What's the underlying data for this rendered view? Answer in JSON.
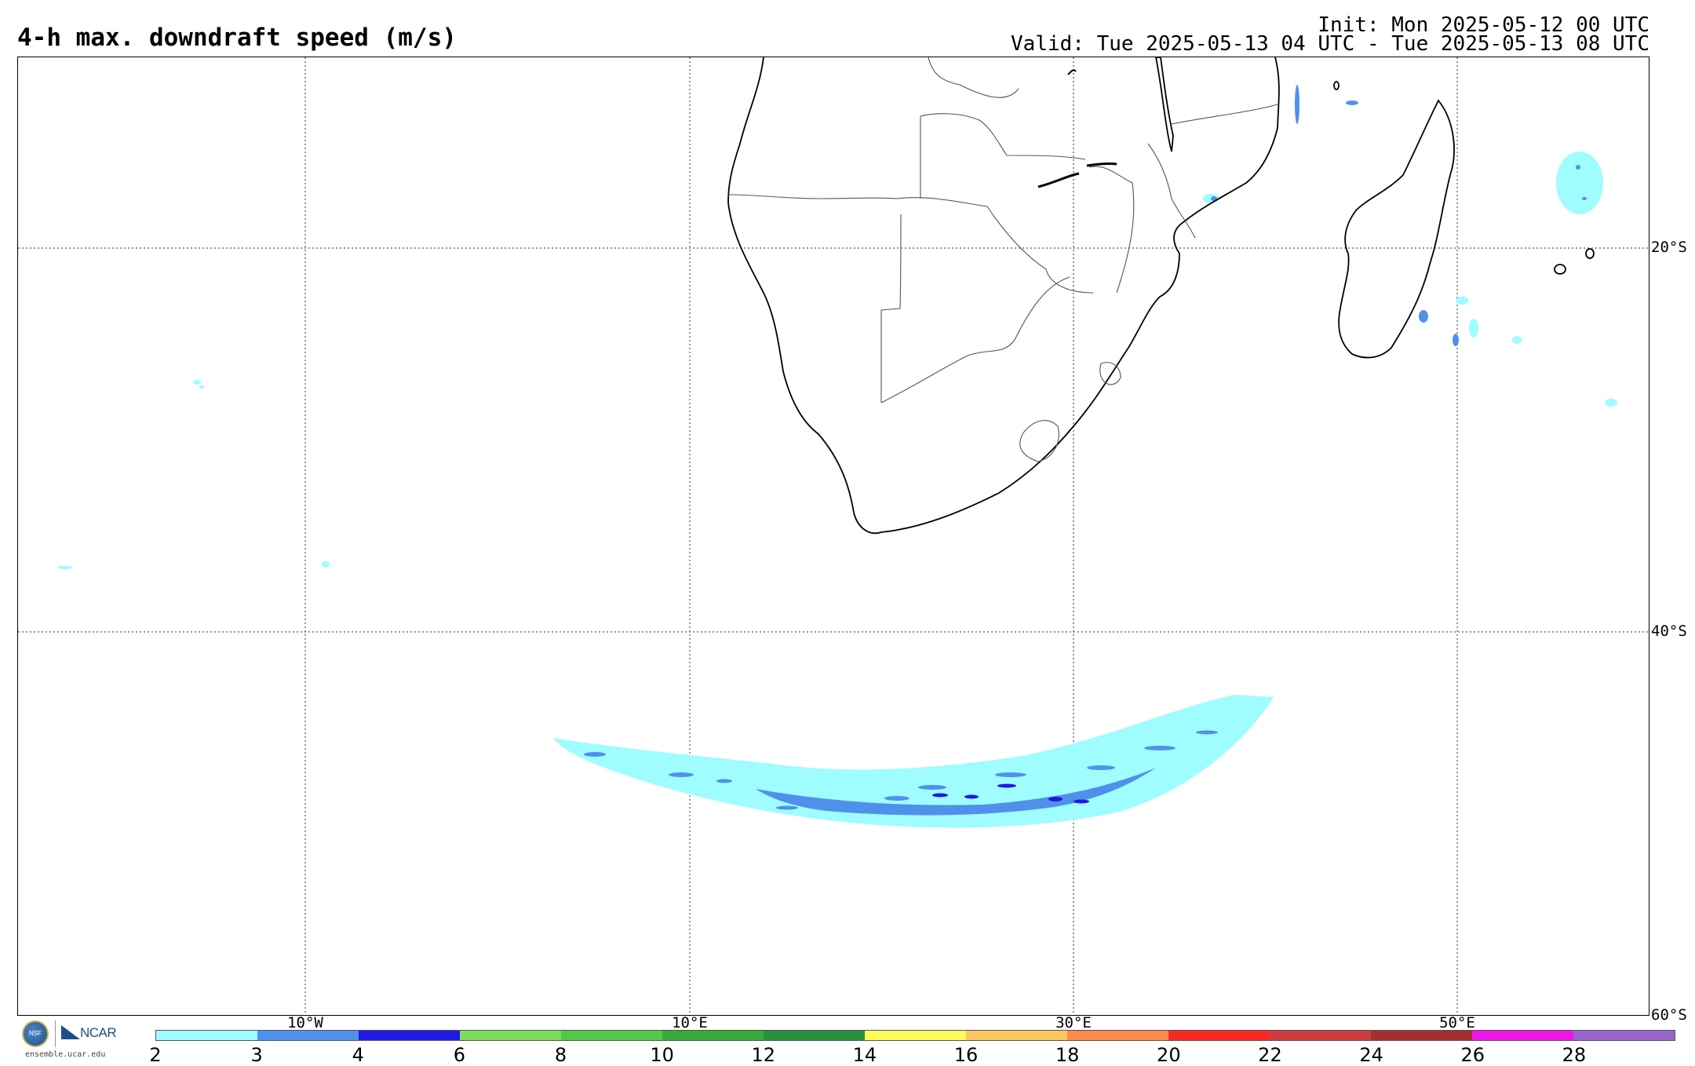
{
  "title": "4-h max. downdraft speed (m/s)",
  "init_text": "Init: Mon 2025-05-12 00 UTC",
  "valid_text": "Valid: Tue 2025-05-13 04 UTC - Tue 2025-05-13 08 UTC",
  "lat_labels": [
    "20°S",
    "40°S",
    "60°S"
  ],
  "lon_labels": [
    "10°W",
    "10°E",
    "30°E",
    "50°E"
  ],
  "logo": {
    "nsf_text": "NSF",
    "ncar_text": "NCAR",
    "url_text": "ensemble.ucar.edu"
  },
  "colorbar": {
    "colors": [
      "#9ffcff",
      "#4f91ea",
      "#1f18e6",
      "#7edb5a",
      "#55c74a",
      "#37ab3c",
      "#2a8f3a",
      "#fffb5a",
      "#fdc762",
      "#fb8a4d",
      "#f52a23",
      "#cc3e3e",
      "#a33030",
      "#ec17e8",
      "#9966cc"
    ],
    "tick_labels": [
      "2",
      "3",
      "4",
      "6",
      "8",
      "10",
      "12",
      "14",
      "16",
      "18",
      "20",
      "22",
      "24",
      "26",
      "28"
    ]
  }
}
